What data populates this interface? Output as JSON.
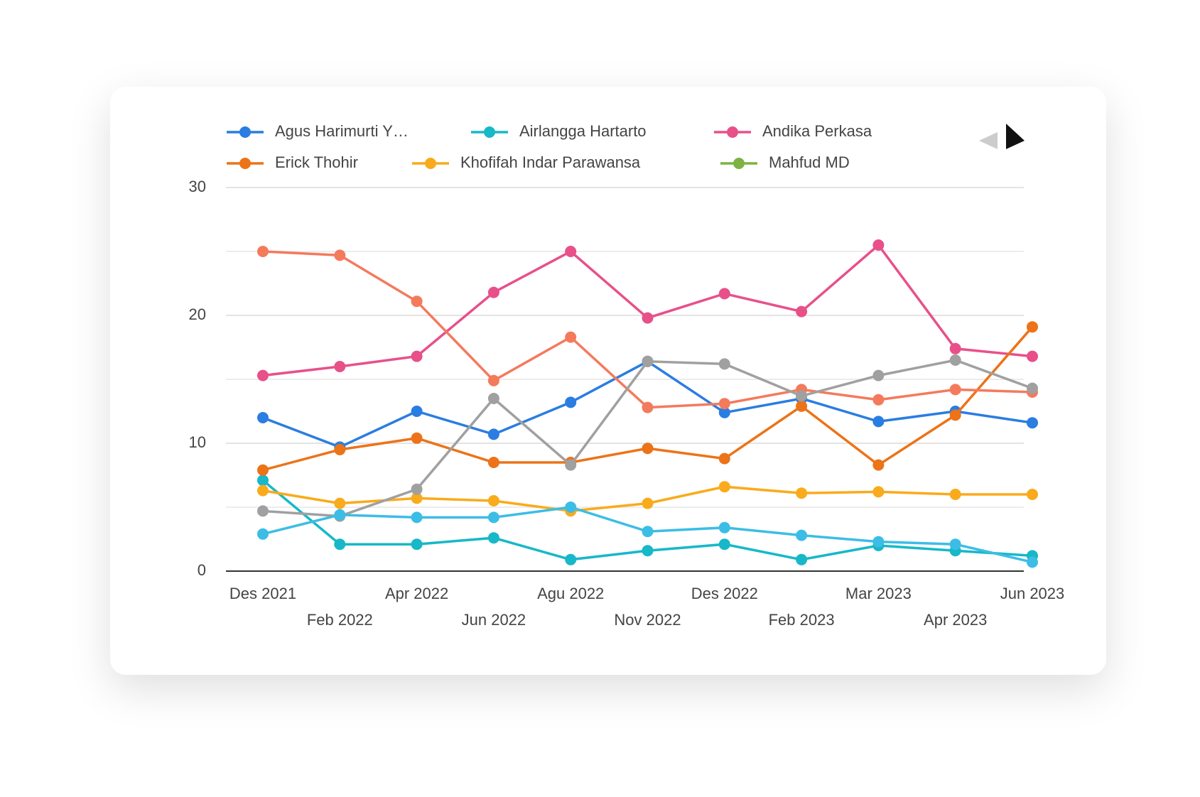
{
  "chart_data": {
    "type": "line",
    "categories": [
      "Des 2021",
      "Feb 2022",
      "Apr 2022",
      "Jun 2022",
      "Agu 2022",
      "Nov 2022",
      "Des 2022",
      "Feb 2023",
      "Mar 2023",
      "Apr 2023",
      "Jun 2023"
    ],
    "series": [
      {
        "name": "Agus Harimurti Y…",
        "color": "#2a7de1",
        "values": [
          12.0,
          9.7,
          12.5,
          10.7,
          13.2,
          16.4,
          12.4,
          13.5,
          11.7,
          12.5,
          11.6
        ]
      },
      {
        "name": "Airlangga Hartarto",
        "color": "#17b8c8",
        "values": [
          7.1,
          2.1,
          2.1,
          2.6,
          0.9,
          1.6,
          2.1,
          0.9,
          2.0,
          1.6,
          1.2
        ]
      },
      {
        "name": "Andika Perkasa",
        "color": "#e8508a",
        "values": [
          15.3,
          16.0,
          16.8,
          21.8,
          25.0,
          19.8,
          21.7,
          20.3,
          25.5,
          17.4,
          16.8
        ]
      },
      {
        "name": "Erick Thohir",
        "color": "#ec7318",
        "values": [
          7.9,
          9.5,
          10.4,
          8.5,
          8.5,
          9.6,
          8.8,
          12.9,
          8.3,
          12.2,
          19.1
        ]
      },
      {
        "name": "Khofifah Indar Parawansa",
        "color": "#f9ab1c",
        "values": [
          6.3,
          5.3,
          5.7,
          5.5,
          4.7,
          5.3,
          6.6,
          6.1,
          6.2,
          6.0,
          6.0
        ]
      },
      {
        "name": "Mahfud MD",
        "color": "#7cb342",
        "values": [
          null,
          null,
          null,
          null,
          null,
          null,
          null,
          null,
          null,
          null,
          null
        ]
      },
      {
        "color": "#f47a5c",
        "values": [
          25.0,
          24.7,
          21.1,
          14.9,
          18.3,
          12.8,
          13.1,
          14.2,
          13.4,
          14.2,
          14.0
        ]
      },
      {
        "color": "#a0a0a0",
        "values": [
          4.7,
          4.3,
          6.4,
          13.5,
          8.3,
          16.4,
          16.2,
          13.7,
          15.3,
          16.5,
          14.3
        ]
      },
      {
        "color": "#3cbde6",
        "values": [
          2.9,
          4.4,
          4.2,
          4.2,
          5.0,
          3.1,
          3.4,
          2.8,
          2.3,
          2.1,
          0.7
        ]
      }
    ],
    "ylim": [
      0,
      30
    ],
    "yticks": [
      0,
      10,
      20,
      30
    ],
    "minor_yticks": [
      5,
      15,
      25
    ],
    "grid": true
  }
}
